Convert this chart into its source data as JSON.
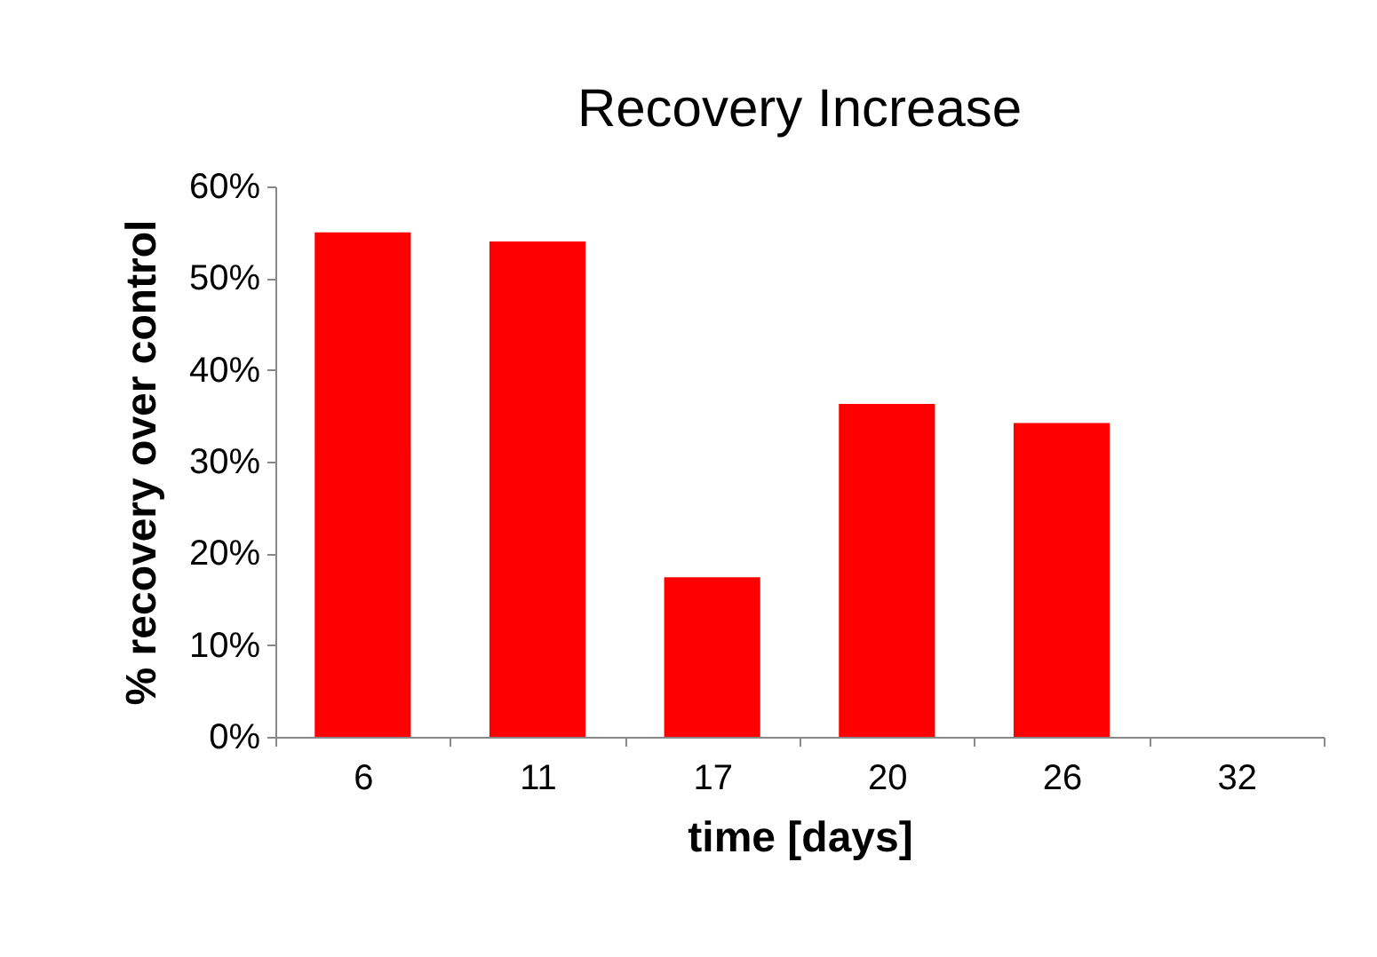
{
  "chart_data": {
    "type": "bar",
    "title": "Recovery Increase",
    "xlabel": "time [days]",
    "ylabel": "% recovery over control",
    "categories": [
      "6",
      "11",
      "17",
      "20",
      "26",
      "32"
    ],
    "values": [
      55,
      54,
      17.4,
      36.3,
      34.2,
      0
    ],
    "color": "#ff0000",
    "ylim": [
      0,
      60
    ],
    "yticks": [
      {
        "value": 0,
        "label": "0%"
      },
      {
        "value": 10,
        "label": "10%"
      },
      {
        "value": 20,
        "label": "20%"
      },
      {
        "value": 30,
        "label": "30%"
      },
      {
        "value": 40,
        "label": "40%"
      },
      {
        "value": 50,
        "label": "50%"
      },
      {
        "value": 60,
        "label": "60%"
      }
    ],
    "grid": false
  }
}
